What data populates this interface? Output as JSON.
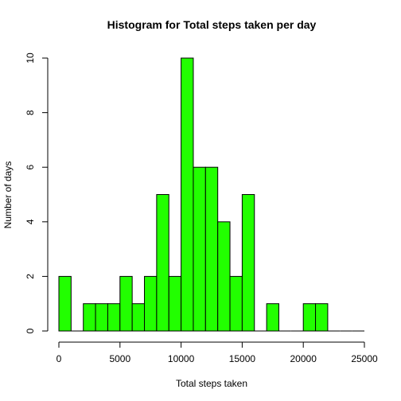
{
  "chart_data": {
    "type": "bar",
    "title": "Histogram for Total steps taken per day",
    "xlabel": "Total steps taken",
    "ylabel": "Number of days",
    "bar_color": "#22ff00",
    "bin_width": 1000,
    "bins": [
      {
        "start": 0,
        "end": 1000,
        "count": 2
      },
      {
        "start": 1000,
        "end": 2000,
        "count": 0
      },
      {
        "start": 2000,
        "end": 3000,
        "count": 1
      },
      {
        "start": 3000,
        "end": 4000,
        "count": 1
      },
      {
        "start": 4000,
        "end": 5000,
        "count": 1
      },
      {
        "start": 5000,
        "end": 6000,
        "count": 2
      },
      {
        "start": 6000,
        "end": 7000,
        "count": 1
      },
      {
        "start": 7000,
        "end": 8000,
        "count": 2
      },
      {
        "start": 8000,
        "end": 9000,
        "count": 5
      },
      {
        "start": 9000,
        "end": 10000,
        "count": 2
      },
      {
        "start": 10000,
        "end": 11000,
        "count": 10
      },
      {
        "start": 11000,
        "end": 12000,
        "count": 6
      },
      {
        "start": 12000,
        "end": 13000,
        "count": 6
      },
      {
        "start": 13000,
        "end": 14000,
        "count": 4
      },
      {
        "start": 14000,
        "end": 15000,
        "count": 2
      },
      {
        "start": 15000,
        "end": 16000,
        "count": 5
      },
      {
        "start": 16000,
        "end": 17000,
        "count": 0
      },
      {
        "start": 17000,
        "end": 18000,
        "count": 1
      },
      {
        "start": 18000,
        "end": 19000,
        "count": 0
      },
      {
        "start": 19000,
        "end": 20000,
        "count": 0
      },
      {
        "start": 20000,
        "end": 21000,
        "count": 1
      },
      {
        "start": 21000,
        "end": 22000,
        "count": 1
      },
      {
        "start": 22000,
        "end": 23000,
        "count": 0
      },
      {
        "start": 23000,
        "end": 24000,
        "count": 0
      },
      {
        "start": 24000,
        "end": 25000,
        "count": 0
      }
    ],
    "x_ticks": [
      "0",
      "5000",
      "10000",
      "15000",
      "20000",
      "25000"
    ],
    "y_ticks": [
      "0",
      "2",
      "4",
      "6",
      "8",
      "10"
    ],
    "xlim": [
      0,
      25000
    ],
    "ylim": [
      0,
      10
    ],
    "grid": false,
    "legend": "none"
  }
}
